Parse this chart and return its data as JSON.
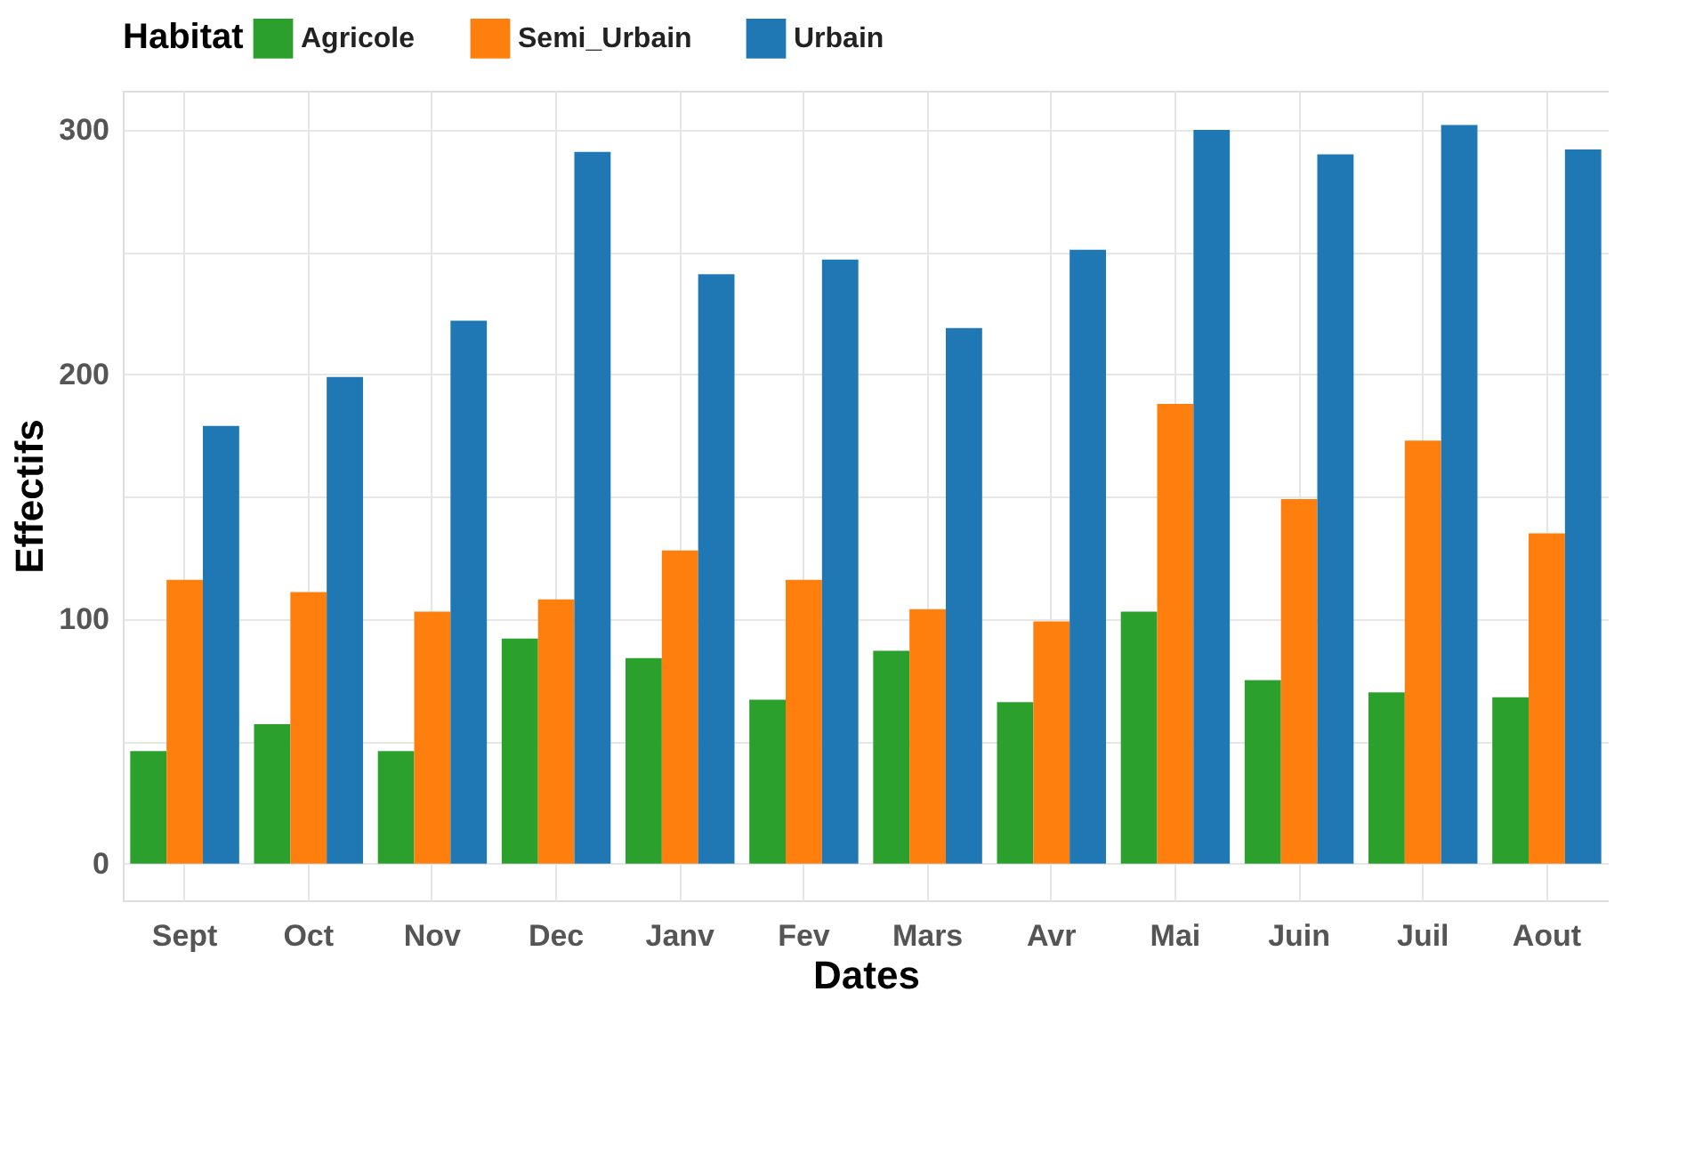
{
  "chart_data": {
    "type": "bar",
    "xlabel": "Dates",
    "ylabel": "Effectifs",
    "legend_title": "Habitat",
    "legend": "top",
    "categories": [
      "Sept",
      "Oct",
      "Nov",
      "Dec",
      "Janv",
      "Fev",
      "Mars",
      "Avr",
      "Mai",
      "Juin",
      "Juil",
      "Aout"
    ],
    "series": [
      {
        "name": "Agricole",
        "color": "#2ca02c",
        "values": [
          46,
          57,
          46,
          92,
          84,
          67,
          87,
          66,
          103,
          75,
          70,
          68
        ]
      },
      {
        "name": "Semi_Urbain",
        "color": "#ff7f0e",
        "values": [
          116,
          111,
          103,
          108,
          128,
          116,
          104,
          99,
          188,
          149,
          173,
          135
        ]
      },
      {
        "name": "Urbain",
        "color": "#1f77b4",
        "values": [
          179,
          199,
          222,
          291,
          241,
          247,
          219,
          251,
          300,
          290,
          302,
          292
        ]
      }
    ],
    "ylim": [
      -15,
      316
    ],
    "yticks": [
      0,
      {
        "value": 50,
        "label": null
      },
      100,
      {
        "value": 150,
        "label": null
      },
      200,
      {
        "value": 250,
        "label": null
      },
      300
    ],
    "grid": true
  }
}
